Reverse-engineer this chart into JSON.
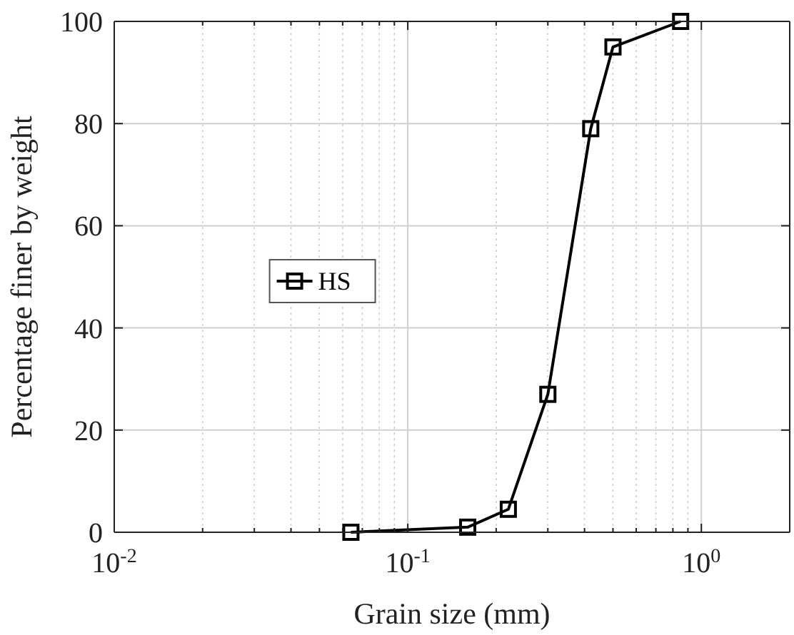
{
  "chart_data": {
    "type": "line",
    "xlabel": "Grain size (mm)",
    "ylabel": "Percentage finer by weight",
    "log": "x",
    "xlim": [
      0.01,
      2
    ],
    "xticks": [
      {
        "value": 0.01,
        "label": "10$^{-2}$"
      },
      {
        "value": 0.1,
        "label": "10$^{-1}$"
      },
      {
        "value": 1,
        "label": "10$^{0}$"
      }
    ],
    "ylim": [
      0,
      100
    ],
    "yticks": [
      0,
      20,
      40,
      60,
      80,
      100
    ],
    "grid": true,
    "legend": "center",
    "marker": "square",
    "line_style": "solid",
    "series": [
      {
        "name": "HS",
        "color": "#000000",
        "x": [
          0.064,
          0.16,
          0.22,
          0.3,
          0.42,
          0.5,
          0.85
        ],
        "values": [
          0,
          1,
          4.5,
          27,
          79,
          95,
          100
        ]
      }
    ]
  }
}
